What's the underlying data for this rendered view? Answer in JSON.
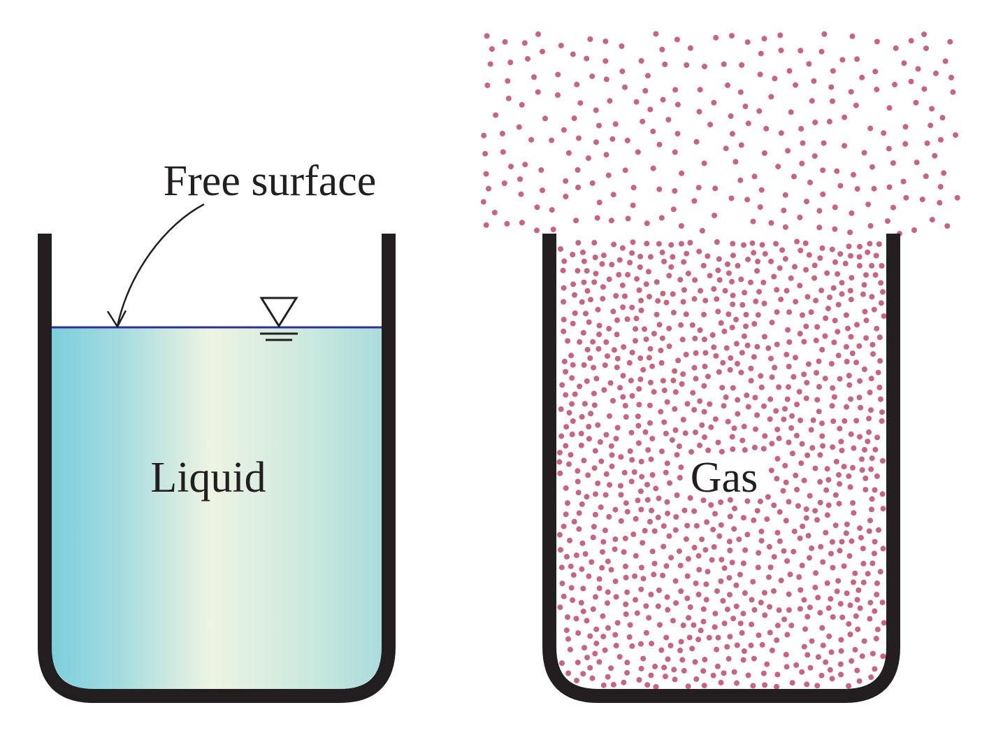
{
  "labels": {
    "free_surface": "Free surface",
    "liquid": "Liquid",
    "gas": "Gas"
  },
  "colors": {
    "container": "#231f20",
    "free_surface_line": "#2e3192",
    "liquid_edge": "#7ccfdd",
    "liquid_center": "#eef4e2",
    "liquid_right": "#aadcdc",
    "gas_particle": "#c96480"
  },
  "icons": {
    "water_level": "free-surface-symbol-icon"
  }
}
